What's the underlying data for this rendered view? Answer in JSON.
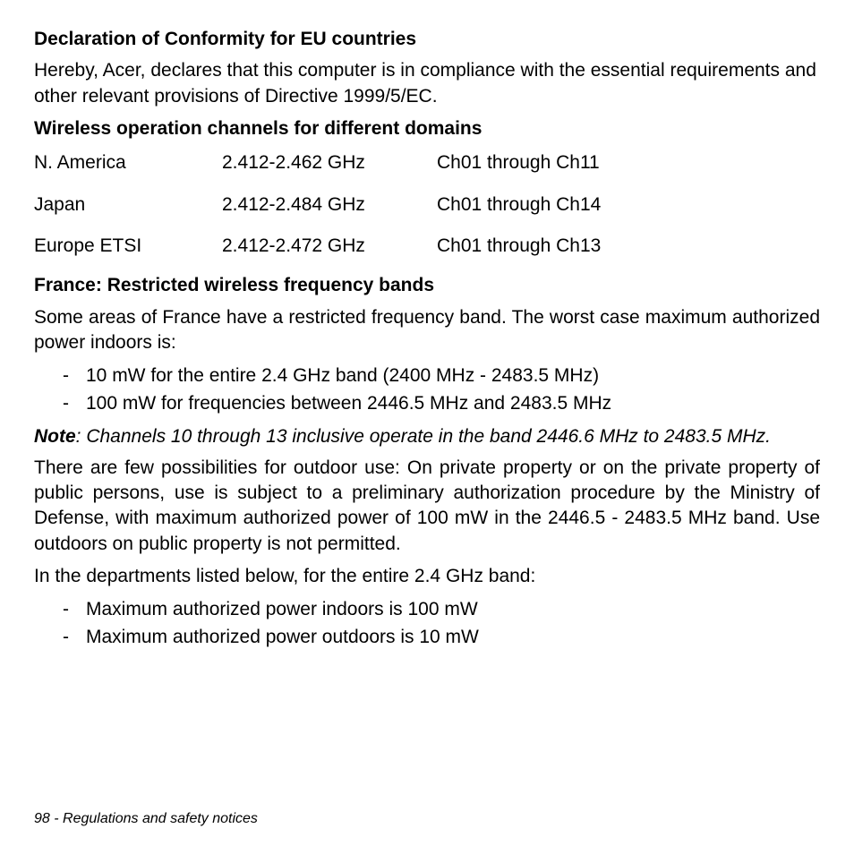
{
  "headings": {
    "eu": "Declaration of Conformity for EU countries",
    "wireless": "Wireless operation channels for different domains",
    "france": "France: Restricted wireless frequency bands"
  },
  "paragraphs": {
    "eu_body": "Hereby, Acer, declares that this computer is in compliance with the essential requirements and other relevant provisions of Directive 1999/5/EC.",
    "france_intro": "Some areas of France have a restricted frequency band. The worst case maximum authorized power indoors is:",
    "outdoor": "There are few possibilities for outdoor use: On private property or on the private property of public persons, use is subject to a preliminary authorization procedure by the Ministry of Defense, with maximum authorized power of 100 mW in the 2446.5 - 2483.5 MHz band. Use outdoors on public property is not permitted.",
    "departments": "In the departments listed below, for the entire 2.4 GHz band:"
  },
  "table": {
    "rows": [
      {
        "region": "N. America",
        "freq": "2.412-2.462 GHz",
        "channels": "Ch01 through Ch11"
      },
      {
        "region": "Japan",
        "freq": "2.412-2.484 GHz",
        "channels": "Ch01 through Ch14"
      },
      {
        "region": "Europe ETSI",
        "freq": "2.412-2.472 GHz",
        "channels": "Ch01 through Ch13"
      }
    ]
  },
  "lists": {
    "power": [
      "10 mW for the entire 2.4 GHz band (2400 MHz - 2483.5 MHz)",
      "100 mW for frequencies between 2446.5 MHz and 2483.5 MHz"
    ],
    "dept": [
      "Maximum authorized power indoors is 100 mW",
      "Maximum authorized power outdoors is 10 mW"
    ]
  },
  "note": {
    "label": "Note",
    "text": ": Channels 10 through 13 inclusive operate in the band 2446.6 MHz to 2483.5 MHz."
  },
  "footer": "98 - Regulations and safety notices"
}
